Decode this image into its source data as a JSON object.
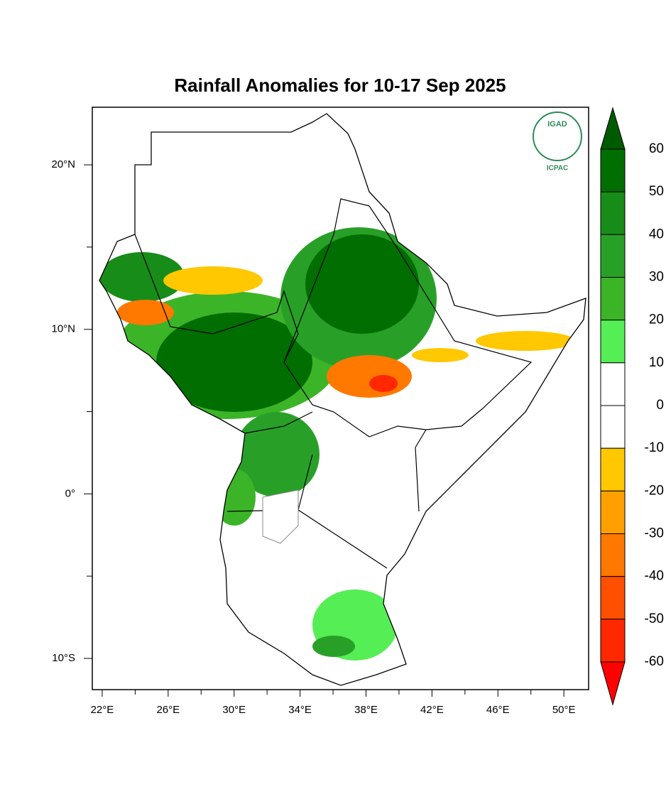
{
  "chart_data": {
    "type": "map",
    "title": "Rainfall Anomalies for 10-17 Sep 2025",
    "logo": {
      "top": "IGAD",
      "bottom": "ICPAC"
    },
    "xlim": [
      21.4,
      51.5
    ],
    "ylim": [
      -11.9,
      23.5
    ],
    "xticks": [
      {
        "value": 22,
        "label": "22°E"
      },
      {
        "value": 26,
        "label": "26°E"
      },
      {
        "value": 30,
        "label": "30°E"
      },
      {
        "value": 34,
        "label": "34°E"
      },
      {
        "value": 38,
        "label": "38°E"
      },
      {
        "value": 42,
        "label": "42°E"
      },
      {
        "value": 46,
        "label": "46°E"
      },
      {
        "value": 50,
        "label": "50°E"
      }
    ],
    "minor_xticks": [
      24,
      28,
      32,
      36,
      40,
      44,
      48
    ],
    "yticks": [
      {
        "value": 20,
        "label": "20°N"
      },
      {
        "value": 10,
        "label": "10°N"
      },
      {
        "value": 0,
        "label": "0°"
      },
      {
        "value": -10,
        "label": "10°S"
      }
    ],
    "minor_yticks": [
      15,
      5,
      -5
    ],
    "colorbar": {
      "ticks": [
        60,
        50,
        40,
        30,
        20,
        10,
        0,
        -10,
        -20,
        -30,
        -40,
        -50,
        -60
      ],
      "colors": [
        "#005a00",
        "#006e00",
        "#188c18",
        "#28a028",
        "#3cb428",
        "#55ee55",
        "#ffffff",
        "#ffffff",
        "#ffc800",
        "#ffa000",
        "#ff7800",
        "#ff5000",
        "#ff2800",
        "#ff0000"
      ]
    }
  }
}
